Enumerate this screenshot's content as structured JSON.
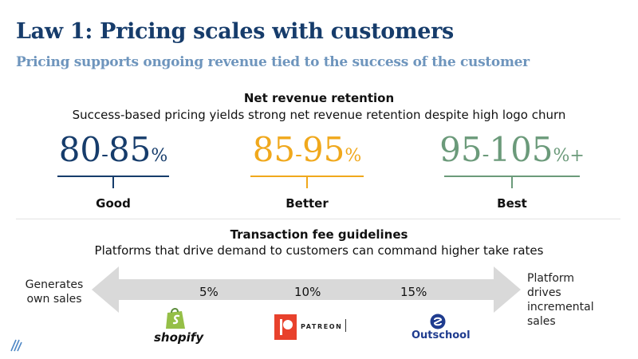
{
  "header": {
    "title": "Law 1: Pricing scales with customers",
    "subtitle": "Pricing supports ongoing revenue tied to the success of the customer"
  },
  "nrr": {
    "title": "Net revenue retention",
    "subtitle": "Success-based pricing yields strong net revenue retention despite high logo churn",
    "tiers": [
      {
        "low": "80",
        "high": "85",
        "suffix": "%",
        "label": "Good",
        "color": "#163c6b"
      },
      {
        "low": "85",
        "high": "95",
        "suffix": "%",
        "label": "Better",
        "color": "#f0a81c"
      },
      {
        "low": "95",
        "high": "105",
        "suffix": "%+",
        "label": "Best",
        "color": "#6b9a7a"
      }
    ],
    "range_separator": "-"
  },
  "fees": {
    "title": "Transaction fee guidelines",
    "subtitle": "Platforms that drive demand to customers can command higher take rates",
    "left_label": "Generates own sales",
    "right_label": "Platform drives incremental sales",
    "rates": [
      "5%",
      "10%",
      "15%"
    ],
    "logos": [
      {
        "name": "shopify",
        "text": "shopify",
        "icon": "shopify-bag-icon",
        "color": "#95bf47"
      },
      {
        "name": "patreon",
        "text": "PATREON",
        "icon": "patreon-icon",
        "color": "#e8412c"
      },
      {
        "name": "outschool",
        "text": "Outschool",
        "icon": "outschool-icon",
        "color": "#1f3c8f"
      }
    ],
    "arrow_color": "#d9d9d9"
  }
}
